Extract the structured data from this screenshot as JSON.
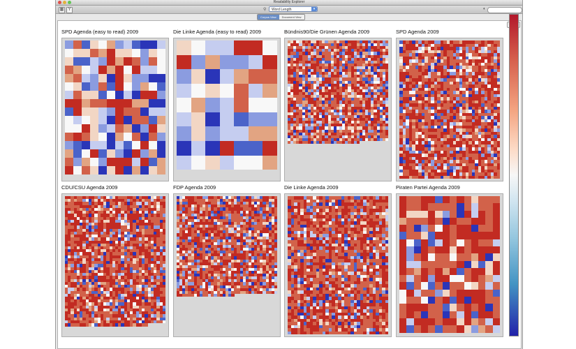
{
  "window": {
    "title": "Readability Explorer"
  },
  "toolbar": {
    "measure_select": "Word Length",
    "left_buttons": [
      "grid-icon",
      "filter-icon"
    ],
    "search_placeholder": ""
  },
  "view_switch": {
    "items": [
      "Corpus View",
      "Document View"
    ],
    "active": 0
  },
  "panels": [
    {
      "title": "SPD Agenda (easy to read) 2009",
      "cols": 12,
      "cells": 300,
      "seed": 11,
      "red_bias": 0.25
    },
    {
      "title": "Die Linke Agenda (easy to read) 2009",
      "cols": 7,
      "cells": 70,
      "seed": 23,
      "red_bias": 0.2
    },
    {
      "title": "Bündnis90/Die Grünen Agenda 2009",
      "cols": 35,
      "cells": 1250,
      "seed": 37,
      "red_bias": 0.6
    },
    {
      "title": "SPD Agenda 2009",
      "cols": 32,
      "cells": 1550,
      "seed": 41,
      "red_bias": 0.7
    },
    {
      "title": "CDU/CSU Agenda 2009",
      "cols": 34,
      "cells": 1490,
      "seed": 53,
      "red_bias": 0.72
    },
    {
      "title": "FDP Agenda 2009",
      "cols": 35,
      "cells": 1210,
      "seed": 61,
      "red_bias": 0.68
    },
    {
      "title": "Die Linke Agenda 2009",
      "cols": 32,
      "cells": 1450,
      "seed": 71,
      "red_bias": 0.74
    },
    {
      "title": "Piraten Partei Agenda 2009",
      "cols": 14,
      "cells": 296,
      "seed": 83,
      "red_bias": 0.68
    }
  ],
  "colors": {
    "low": "#2a35b8",
    "mid": "#f8f8f8",
    "high": "#c22b22",
    "ramp": [
      "#2a35b8",
      "#4b63c9",
      "#8b9ce0",
      "#c5cdf0",
      "#f8f8f8",
      "#f2d6c4",
      "#e2a482",
      "#d2624a",
      "#c22b22"
    ]
  }
}
